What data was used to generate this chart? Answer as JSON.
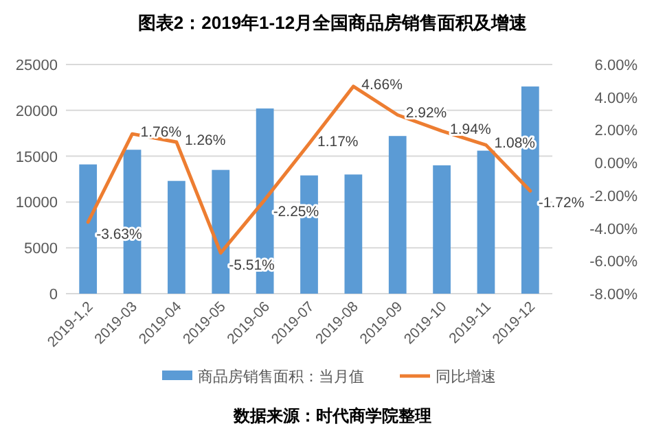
{
  "chart_data": {
    "type": "bar",
    "title": "图表2：2019年1-12月全国商品房销售面积及增速",
    "categories": [
      "2019-1,2",
      "2019-03",
      "2019-04",
      "2019-05",
      "2019-06",
      "2019-07",
      "2019-08",
      "2019-09",
      "2019-10",
      "2019-11",
      "2019-12"
    ],
    "series": [
      {
        "name": "商品房销售面积：当月值",
        "color": "#5b9bd5",
        "values": [
          14100,
          15700,
          12300,
          13500,
          20200,
          12900,
          13000,
          17200,
          14000,
          15600,
          22600
        ]
      },
      {
        "name": "同比增速",
        "type": "line",
        "axis": "y2",
        "color": "#ed7d31",
        "values": [
          -3.63,
          1.76,
          1.26,
          -5.51,
          -2.25,
          1.17,
          4.66,
          2.92,
          1.94,
          1.08,
          -1.72
        ],
        "value_labels": [
          "-3.63%",
          "1.76%",
          "1.26%",
          "-5.51%",
          "-2.25%",
          "1.17%",
          "4.66%",
          "2.92%",
          "1.94%",
          "1.08%",
          "-1.72%"
        ]
      }
    ],
    "ylim": [
      0,
      25000
    ],
    "yticks": [
      0,
      5000,
      10000,
      15000,
      20000,
      25000
    ],
    "y2lim": [
      -8,
      6
    ],
    "y2ticks": [
      {
        "value": 6,
        "label": "6.00%"
      },
      {
        "value": 4,
        "label": "4.00%"
      },
      {
        "value": 2,
        "label": "2.00%"
      },
      {
        "value": 0,
        "label": "0.00%"
      },
      {
        "value": -2,
        "label": "-2.00%"
      },
      {
        "value": -4,
        "label": "-4.00%"
      },
      {
        "value": -6,
        "label": "-6.00%"
      },
      {
        "value": -8,
        "label": "-8.00%"
      }
    ],
    "grid": "y",
    "legend": "bottom",
    "annotations": [
      "数据来源：时代商学院整理"
    ]
  }
}
